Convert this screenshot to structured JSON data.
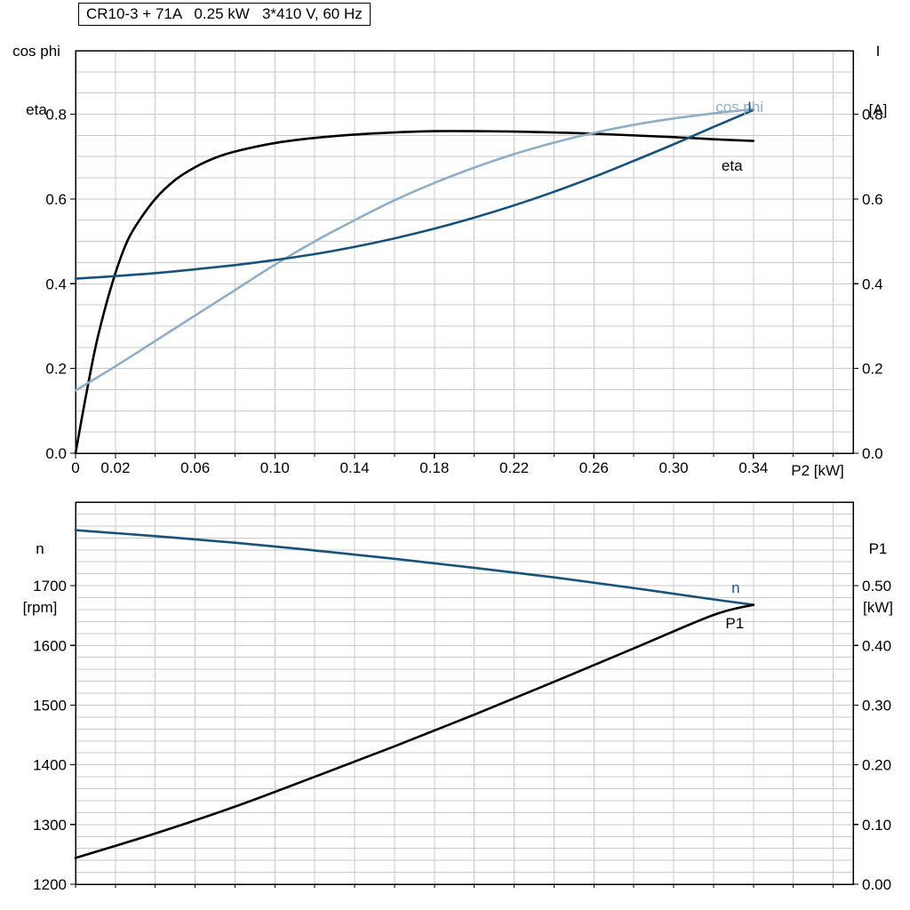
{
  "header": {
    "title": "CR10-3 + 71A   0.25 kW   3*410 V, 60 Hz"
  },
  "colors": {
    "black_curve": "#000000",
    "light_blue_curve": "#8faec9",
    "dark_blue_curve": "#17527c",
    "grid": "#c9c9c9",
    "frame": "#000000",
    "text": "#000000"
  },
  "chart_data": [
    {
      "id": "top",
      "type": "line",
      "title": "CR10-3 + 71A   0.25 kW   3*410 V, 60 Hz",
      "x_axis": {
        "label": "P2 [kW]",
        "range": [
          0,
          0.39
        ],
        "grid_step": 0.02,
        "tick_values": [
          0,
          0.02,
          0.06,
          0.1,
          0.14,
          0.18,
          0.22,
          0.26,
          0.3,
          0.34
        ],
        "tick_labels": [
          "0",
          "0.02",
          "0.06",
          "0.10",
          "0.14",
          "0.18",
          "0.22",
          "0.26",
          "0.30",
          "0.34"
        ]
      },
      "left_axis": {
        "label": [
          "cos phi",
          "eta"
        ],
        "range": [
          0,
          0.95
        ],
        "grid_step": 0.05,
        "tick_values": [
          0,
          0.2,
          0.4,
          0.6,
          0.8
        ],
        "tick_labels": [
          "0.0",
          "0.2",
          "0.4",
          "0.6",
          "0.8"
        ]
      },
      "right_axis": {
        "label": [
          "I",
          "[A]"
        ],
        "range": [
          0,
          0.95
        ],
        "tick_values": [
          0,
          0.2,
          0.4,
          0.6,
          0.8
        ],
        "tick_labels": [
          "0.0",
          "0.2",
          "0.4",
          "0.6",
          "0.8"
        ]
      },
      "series": [
        {
          "name": "eta",
          "color": "black_curve",
          "axis": "left",
          "x": [
            0,
            0.005,
            0.01,
            0.015,
            0.02,
            0.025,
            0.03,
            0.04,
            0.05,
            0.06,
            0.07,
            0.08,
            0.1,
            0.12,
            0.14,
            0.16,
            0.18,
            0.2,
            0.22,
            0.24,
            0.26,
            0.28,
            0.3,
            0.32,
            0.34
          ],
          "y": [
            0,
            0.13,
            0.25,
            0.345,
            0.425,
            0.49,
            0.535,
            0.6,
            0.645,
            0.675,
            0.697,
            0.712,
            0.732,
            0.744,
            0.752,
            0.757,
            0.76,
            0.76,
            0.759,
            0.757,
            0.754,
            0.75,
            0.746,
            0.741,
            0.737
          ]
        },
        {
          "name": "cos phi",
          "color": "light_blue_curve",
          "axis": "left",
          "x": [
            0,
            0.02,
            0.04,
            0.06,
            0.08,
            0.1,
            0.12,
            0.14,
            0.16,
            0.18,
            0.2,
            0.22,
            0.24,
            0.26,
            0.28,
            0.3,
            0.32,
            0.34
          ],
          "y": [
            0.148,
            0.205,
            0.265,
            0.325,
            0.385,
            0.445,
            0.5,
            0.55,
            0.597,
            0.638,
            0.674,
            0.706,
            0.733,
            0.756,
            0.775,
            0.79,
            0.802,
            0.812
          ]
        },
        {
          "name": "I",
          "color": "dark_blue_curve",
          "axis": "right",
          "x": [
            0,
            0.02,
            0.04,
            0.06,
            0.08,
            0.1,
            0.12,
            0.14,
            0.16,
            0.18,
            0.2,
            0.22,
            0.24,
            0.26,
            0.28,
            0.3,
            0.32,
            0.34
          ],
          "y": [
            0.412,
            0.418,
            0.425,
            0.434,
            0.444,
            0.456,
            0.47,
            0.487,
            0.507,
            0.53,
            0.556,
            0.585,
            0.617,
            0.652,
            0.69,
            0.729,
            0.77,
            0.81
          ]
        }
      ],
      "curve_labels": [
        {
          "text": "cos phi",
          "color": "light_blue_curve",
          "axis": "left",
          "x": 0.321,
          "y": 0.805
        },
        {
          "text": "I",
          "color": "dark_blue_curve",
          "axis": "left",
          "x": 0.337,
          "y": 0.805
        },
        {
          "text": "eta",
          "color": "black_curve",
          "axis": "left",
          "x": 0.324,
          "y": 0.667
        }
      ]
    },
    {
      "id": "bottom",
      "type": "line",
      "title": "",
      "x_axis": {
        "label": "",
        "range": [
          0,
          0.39
        ],
        "grid_step": 0.02,
        "tick_values": [],
        "tick_labels": []
      },
      "left_axis": {
        "label": [
          "n",
          "[rpm]"
        ],
        "range": [
          1200,
          1840
        ],
        "grid_step": 20,
        "tick_values": [
          1200,
          1300,
          1400,
          1500,
          1600,
          1700
        ],
        "tick_labels": [
          "1200",
          "1300",
          "1400",
          "1500",
          "1600",
          "1700"
        ]
      },
      "right_axis": {
        "label": [
          "P1",
          "[kW]"
        ],
        "range": [
          0,
          0.64
        ],
        "tick_values": [
          0,
          0.1,
          0.2,
          0.3,
          0.4,
          0.5
        ],
        "tick_labels": [
          "0.00",
          "0.10",
          "0.20",
          "0.30",
          "0.40",
          "0.50"
        ]
      },
      "series": [
        {
          "name": "n",
          "color": "dark_blue_curve",
          "axis": "left",
          "x": [
            0,
            0.04,
            0.08,
            0.12,
            0.16,
            0.2,
            0.24,
            0.28,
            0.32,
            0.34
          ],
          "y": [
            1793,
            1783,
            1772,
            1759,
            1745,
            1730,
            1714,
            1696,
            1677,
            1668
          ]
        },
        {
          "name": "P1",
          "color": "black_curve",
          "axis": "right",
          "x": [
            0,
            0.04,
            0.08,
            0.12,
            0.16,
            0.2,
            0.24,
            0.28,
            0.32,
            0.34
          ],
          "y": [
            0.044,
            0.085,
            0.13,
            0.18,
            0.231,
            0.284,
            0.339,
            0.395,
            0.451,
            0.468
          ]
        }
      ],
      "curve_labels": [
        {
          "text": "n",
          "color": "dark_blue_curve",
          "axis": "left",
          "x": 0.329,
          "y": 1688
        },
        {
          "text": "P1",
          "color": "black_curve",
          "axis": "right",
          "x": 0.326,
          "y": 0.429
        }
      ]
    }
  ]
}
